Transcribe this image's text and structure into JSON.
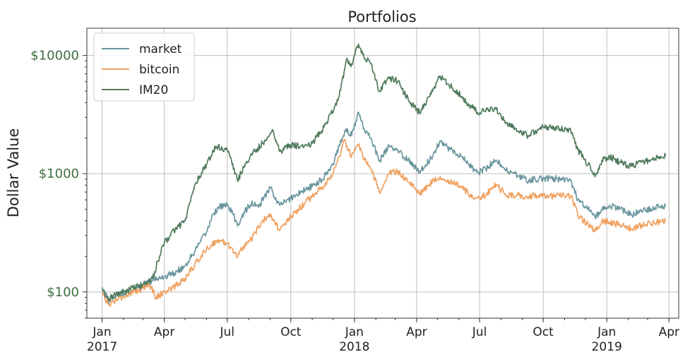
{
  "chart_data": {
    "type": "line",
    "title": "Portfolios",
    "ylabel": "Dollar Value",
    "xlabel": "",
    "y_scale": "log",
    "ylim": [
      60,
      17000
    ],
    "xlim": [
      "2016-12-10",
      "2019-04-15"
    ],
    "grid": true,
    "legend_position": "top-left",
    "y_ticks": [
      {
        "value": 100,
        "label": "$100"
      },
      {
        "value": 1000,
        "label": "$1000"
      },
      {
        "value": 10000,
        "label": "$10000"
      }
    ],
    "x_ticks": [
      {
        "date": "2017-01-01",
        "label": "Jan",
        "year": "2017"
      },
      {
        "date": "2017-04-01",
        "label": "Apr",
        "year": ""
      },
      {
        "date": "2017-07-01",
        "label": "Jul",
        "year": ""
      },
      {
        "date": "2017-10-01",
        "label": "Oct",
        "year": ""
      },
      {
        "date": "2018-01-01",
        "label": "Jan",
        "year": "2018"
      },
      {
        "date": "2018-04-01",
        "label": "Apr",
        "year": ""
      },
      {
        "date": "2018-07-01",
        "label": "Jul",
        "year": ""
      },
      {
        "date": "2018-10-01",
        "label": "Oct",
        "year": ""
      },
      {
        "date": "2019-01-01",
        "label": "Jan",
        "year": "2019"
      },
      {
        "date": "2019-04-01",
        "label": "Apr",
        "year": ""
      }
    ],
    "series": [
      {
        "name": "market",
        "color": "#6a969e",
        "points": [
          [
            "2017-01-01",
            110
          ],
          [
            "2017-01-10",
            85
          ],
          [
            "2017-01-20",
            92
          ],
          [
            "2017-02-01",
            98
          ],
          [
            "2017-02-15",
            105
          ],
          [
            "2017-03-01",
            112
          ],
          [
            "2017-03-15",
            125
          ],
          [
            "2017-04-01",
            135
          ],
          [
            "2017-04-15",
            145
          ],
          [
            "2017-05-01",
            165
          ],
          [
            "2017-05-15",
            220
          ],
          [
            "2017-06-01",
            320
          ],
          [
            "2017-06-10",
            450
          ],
          [
            "2017-06-20",
            530
          ],
          [
            "2017-07-01",
            540
          ],
          [
            "2017-07-10",
            450
          ],
          [
            "2017-07-16",
            360
          ],
          [
            "2017-07-25",
            470
          ],
          [
            "2017-08-05",
            560
          ],
          [
            "2017-08-15",
            520
          ],
          [
            "2017-09-01",
            760
          ],
          [
            "2017-09-15",
            540
          ],
          [
            "2017-10-01",
            620
          ],
          [
            "2017-10-15",
            700
          ],
          [
            "2017-11-01",
            780
          ],
          [
            "2017-11-15",
            900
          ],
          [
            "2017-12-01",
            1200
          ],
          [
            "2017-12-10",
            1750
          ],
          [
            "2017-12-20",
            2400
          ],
          [
            "2017-12-28",
            2100
          ],
          [
            "2018-01-07",
            3300
          ],
          [
            "2018-01-15",
            2400
          ],
          [
            "2018-01-25",
            2000
          ],
          [
            "2018-02-06",
            1280
          ],
          [
            "2018-02-20",
            1700
          ],
          [
            "2018-03-05",
            1550
          ],
          [
            "2018-03-20",
            1300
          ],
          [
            "2018-04-05",
            1050
          ],
          [
            "2018-04-20",
            1300
          ],
          [
            "2018-05-05",
            1900
          ],
          [
            "2018-05-20",
            1600
          ],
          [
            "2018-06-05",
            1400
          ],
          [
            "2018-06-15",
            1200
          ],
          [
            "2018-06-28",
            1020
          ],
          [
            "2018-07-10",
            1100
          ],
          [
            "2018-07-25",
            1300
          ],
          [
            "2018-08-10",
            1050
          ],
          [
            "2018-08-25",
            960
          ],
          [
            "2018-09-10",
            880
          ],
          [
            "2018-09-25",
            900
          ],
          [
            "2018-10-10",
            920
          ],
          [
            "2018-10-25",
            900
          ],
          [
            "2018-11-10",
            870
          ],
          [
            "2018-11-20",
            600
          ],
          [
            "2018-12-05",
            510
          ],
          [
            "2018-12-15",
            430
          ],
          [
            "2018-12-25",
            490
          ],
          [
            "2019-01-05",
            540
          ],
          [
            "2019-01-20",
            500
          ],
          [
            "2019-02-05",
            450
          ],
          [
            "2019-02-20",
            480
          ],
          [
            "2019-03-05",
            510
          ],
          [
            "2019-03-20",
            530
          ],
          [
            "2019-03-27",
            530
          ]
        ]
      },
      {
        "name": "bitcoin",
        "color": "#f0a160",
        "points": [
          [
            "2017-01-01",
            100
          ],
          [
            "2017-01-10",
            78
          ],
          [
            "2017-01-20",
            85
          ],
          [
            "2017-02-01",
            92
          ],
          [
            "2017-02-15",
            98
          ],
          [
            "2017-03-01",
            108
          ],
          [
            "2017-03-10",
            118
          ],
          [
            "2017-03-20",
            90
          ],
          [
            "2017-04-01",
            100
          ],
          [
            "2017-04-15",
            110
          ],
          [
            "2017-05-01",
            130
          ],
          [
            "2017-05-15",
            170
          ],
          [
            "2017-06-01",
            230
          ],
          [
            "2017-06-15",
            270
          ],
          [
            "2017-07-01",
            260
          ],
          [
            "2017-07-16",
            200
          ],
          [
            "2017-07-25",
            245
          ],
          [
            "2017-08-05",
            280
          ],
          [
            "2017-08-20",
            390
          ],
          [
            "2017-09-01",
            460
          ],
          [
            "2017-09-15",
            330
          ],
          [
            "2017-10-01",
            430
          ],
          [
            "2017-10-15",
            520
          ],
          [
            "2017-11-01",
            650
          ],
          [
            "2017-11-15",
            770
          ],
          [
            "2017-12-01",
            1000
          ],
          [
            "2017-12-10",
            1400
          ],
          [
            "2017-12-17",
            1900
          ],
          [
            "2017-12-28",
            1400
          ],
          [
            "2018-01-07",
            1750
          ],
          [
            "2018-01-15",
            1300
          ],
          [
            "2018-01-25",
            1100
          ],
          [
            "2018-02-06",
            700
          ],
          [
            "2018-02-20",
            1000
          ],
          [
            "2018-03-05",
            1050
          ],
          [
            "2018-03-20",
            850
          ],
          [
            "2018-04-05",
            680
          ],
          [
            "2018-04-20",
            820
          ],
          [
            "2018-05-05",
            950
          ],
          [
            "2018-05-20",
            850
          ],
          [
            "2018-06-05",
            780
          ],
          [
            "2018-06-15",
            670
          ],
          [
            "2018-06-28",
            620
          ],
          [
            "2018-07-10",
            660
          ],
          [
            "2018-07-25",
            810
          ],
          [
            "2018-08-10",
            650
          ],
          [
            "2018-08-25",
            660
          ],
          [
            "2018-09-10",
            640
          ],
          [
            "2018-09-25",
            660
          ],
          [
            "2018-10-10",
            650
          ],
          [
            "2018-10-25",
            650
          ],
          [
            "2018-11-10",
            640
          ],
          [
            "2018-11-20",
            450
          ],
          [
            "2018-12-05",
            370
          ],
          [
            "2018-12-15",
            330
          ],
          [
            "2018-12-25",
            400
          ],
          [
            "2019-01-05",
            390
          ],
          [
            "2019-01-20",
            370
          ],
          [
            "2019-02-05",
            340
          ],
          [
            "2019-02-20",
            370
          ],
          [
            "2019-03-05",
            380
          ],
          [
            "2019-03-20",
            395
          ],
          [
            "2019-03-27",
            400
          ]
        ]
      },
      {
        "name": "IM20",
        "color": "#4f7a5b",
        "points": [
          [
            "2017-01-01",
            105
          ],
          [
            "2017-01-10",
            88
          ],
          [
            "2017-01-20",
            95
          ],
          [
            "2017-02-01",
            100
          ],
          [
            "2017-02-15",
            108
          ],
          [
            "2017-03-01",
            115
          ],
          [
            "2017-03-15",
            130
          ],
          [
            "2017-03-25",
            200
          ],
          [
            "2017-04-01",
            260
          ],
          [
            "2017-04-15",
            330
          ],
          [
            "2017-05-01",
            400
          ],
          [
            "2017-05-15",
            800
          ],
          [
            "2017-06-01",
            1200
          ],
          [
            "2017-06-15",
            1700
          ],
          [
            "2017-07-01",
            1600
          ],
          [
            "2017-07-16",
            870
          ],
          [
            "2017-07-25",
            1150
          ],
          [
            "2017-08-10",
            1550
          ],
          [
            "2017-08-25",
            1900
          ],
          [
            "2017-09-05",
            2350
          ],
          [
            "2017-09-15",
            1550
          ],
          [
            "2017-10-01",
            1750
          ],
          [
            "2017-10-15",
            1700
          ],
          [
            "2017-11-01",
            1800
          ],
          [
            "2017-11-20",
            2600
          ],
          [
            "2017-12-10",
            4500
          ],
          [
            "2017-12-20",
            9000
          ],
          [
            "2017-12-28",
            8500
          ],
          [
            "2018-01-07",
            12500
          ],
          [
            "2018-01-15",
            9500
          ],
          [
            "2018-01-25",
            8500
          ],
          [
            "2018-02-06",
            5000
          ],
          [
            "2018-02-20",
            6500
          ],
          [
            "2018-03-05",
            6000
          ],
          [
            "2018-03-20",
            4200
          ],
          [
            "2018-04-05",
            3300
          ],
          [
            "2018-04-20",
            4500
          ],
          [
            "2018-05-05",
            6700
          ],
          [
            "2018-05-20",
            5500
          ],
          [
            "2018-06-05",
            4500
          ],
          [
            "2018-06-15",
            3900
          ],
          [
            "2018-06-28",
            3300
          ],
          [
            "2018-07-10",
            3400
          ],
          [
            "2018-07-25",
            3500
          ],
          [
            "2018-08-10",
            2700
          ],
          [
            "2018-08-25",
            2300
          ],
          [
            "2018-09-10",
            2100
          ],
          [
            "2018-09-25",
            2400
          ],
          [
            "2018-10-10",
            2500
          ],
          [
            "2018-10-25",
            2400
          ],
          [
            "2018-11-10",
            2300
          ],
          [
            "2018-11-20",
            1600
          ],
          [
            "2018-12-05",
            1200
          ],
          [
            "2018-12-15",
            940
          ],
          [
            "2018-12-25",
            1300
          ],
          [
            "2019-01-05",
            1400
          ],
          [
            "2019-01-20",
            1250
          ],
          [
            "2019-02-05",
            1150
          ],
          [
            "2019-02-20",
            1250
          ],
          [
            "2019-03-05",
            1300
          ],
          [
            "2019-03-20",
            1400
          ],
          [
            "2019-03-27",
            1400
          ]
        ]
      }
    ]
  }
}
